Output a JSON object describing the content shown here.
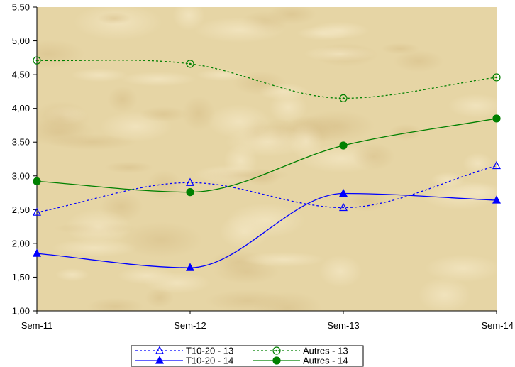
{
  "chart_data": {
    "type": "line",
    "title": "",
    "xlabel": "",
    "ylabel": "",
    "categories": [
      "Sem-11",
      "Sem-12",
      "Sem-13",
      "Sem-14"
    ],
    "y_tick_labels": [
      "1,00",
      "1,50",
      "2,00",
      "2,50",
      "3,00",
      "3,50",
      "4,00",
      "4,50",
      "5,00",
      "5,50"
    ],
    "ylim": [
      1.0,
      5.5
    ],
    "y_step": 0.5,
    "grid": false,
    "smooth": true,
    "legend_position": "bottom",
    "series": [
      {
        "name": "T10-20 - 13",
        "values": [
          2.46,
          2.9,
          2.53,
          3.15
        ],
        "color": "#0000ff",
        "dashed": true,
        "marker": "triangle-open"
      },
      {
        "name": "Autres - 13",
        "values": [
          4.71,
          4.66,
          4.15,
          4.46
        ],
        "color": "#008000",
        "dashed": true,
        "marker": "circle-open"
      },
      {
        "name": "T10-20 - 14",
        "values": [
          1.85,
          1.64,
          2.74,
          2.64
        ],
        "color": "#0000ff",
        "dashed": false,
        "marker": "triangle-filled"
      },
      {
        "name": "Autres - 14",
        "values": [
          2.92,
          2.76,
          3.45,
          3.85
        ],
        "color": "#008000",
        "dashed": false,
        "marker": "circle-filled"
      }
    ],
    "plot_background": "#e6d5a5"
  }
}
